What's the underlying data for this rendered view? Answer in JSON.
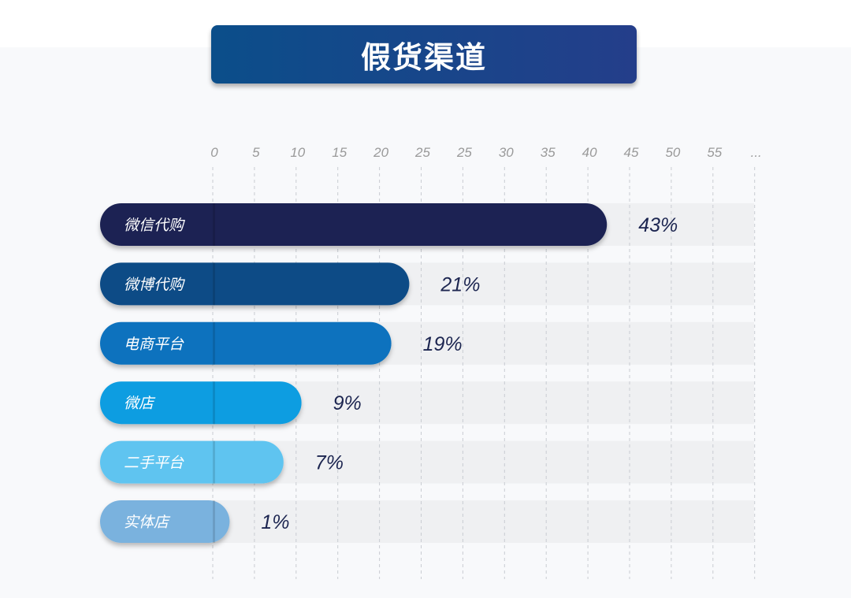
{
  "chart_data": {
    "type": "bar",
    "orientation": "horizontal",
    "title": "假货渠道",
    "x_tick_labels": [
      "0",
      "5",
      "10",
      "15",
      "20",
      "25",
      "25",
      "30",
      "35",
      "40",
      "45",
      "50",
      "55",
      "..."
    ],
    "categories": [
      "微信代购",
      "微博代购",
      "电商平台",
      "微店",
      "二手平台",
      "实体店"
    ],
    "values": [
      43,
      21,
      19,
      9,
      7,
      1
    ],
    "value_labels": [
      "43%",
      "21%",
      "19%",
      "9%",
      "7%",
      "1%"
    ],
    "colors": [
      "#1b2453",
      "#0c4c86",
      "#0872be",
      "#0a9de1",
      "#5ec4f0",
      "#7ab2de"
    ],
    "grid": true,
    "unit": "%"
  }
}
